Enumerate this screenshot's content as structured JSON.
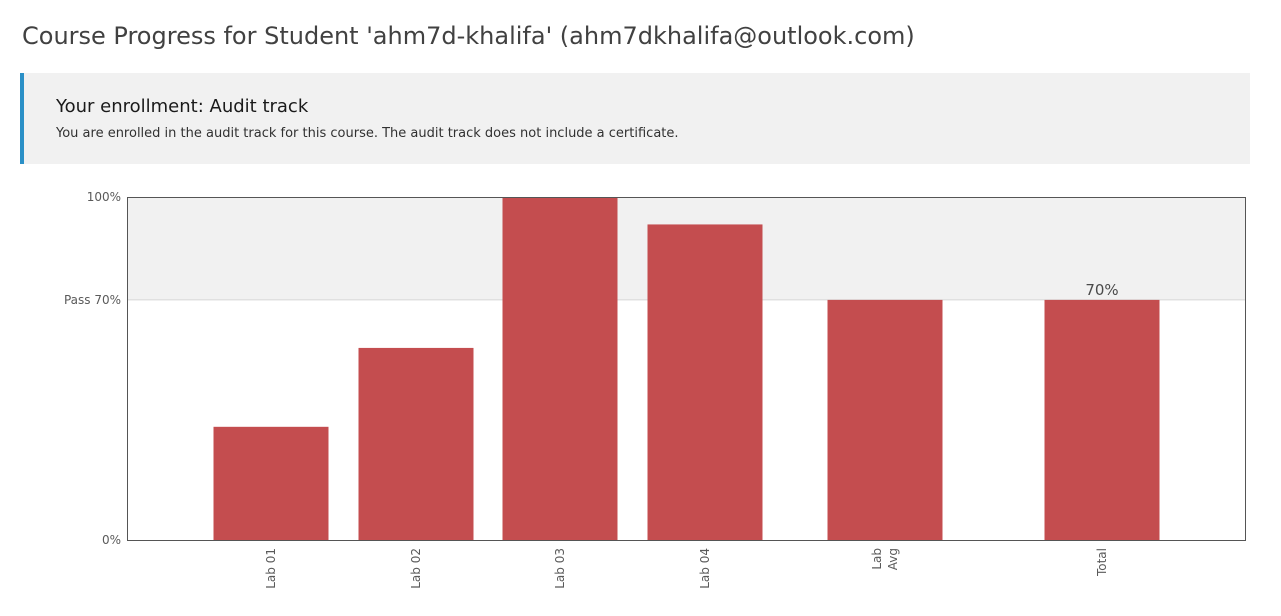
{
  "page": {
    "title": "Course Progress for Student 'ahm7d-khalifa' (ahm7dkhalifa@outlook.com)"
  },
  "enrollment": {
    "title": "Your enrollment: Audit track",
    "message": "You are enrolled in the audit track for this course. The audit track does not include a certificate."
  },
  "colors": {
    "accent": "#2b90c7",
    "bar": "#c44d4f",
    "pass_band": "#f1f1f1"
  },
  "chart_data": {
    "type": "bar",
    "categories": [
      "Lab 01",
      "Lab 02",
      "Lab 03",
      "Lab 04",
      "Lab Avg",
      "Total"
    ],
    "category_label_lines": [
      [
        "Lab 01"
      ],
      [
        "Lab 02"
      ],
      [
        "Lab 03"
      ],
      [
        "Lab 04"
      ],
      [
        "Lab",
        "Avg"
      ],
      [
        "Total"
      ]
    ],
    "values": [
      33,
      56,
      100,
      92,
      70,
      70
    ],
    "ylim": [
      0,
      100
    ],
    "y_ticks": [
      {
        "value": 0,
        "label": "0%"
      },
      {
        "value": 70,
        "label": "Pass 70%"
      },
      {
        "value": 100,
        "label": "100%"
      }
    ],
    "pass_threshold": 70,
    "annotations": [
      {
        "category": "Total",
        "label": "70%"
      }
    ],
    "grid": false,
    "legend": "none"
  }
}
